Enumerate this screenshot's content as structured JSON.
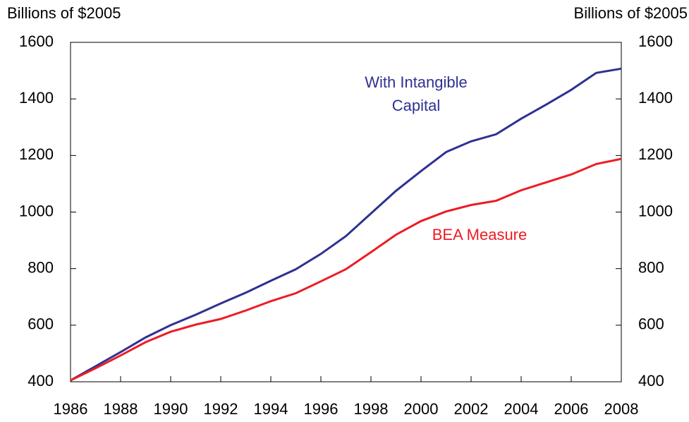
{
  "chart_data": {
    "type": "line",
    "ylabel": "Billions of $2005",
    "y2label": "Billions of $2005",
    "x": [
      1986,
      1987,
      1988,
      1989,
      1990,
      1991,
      1992,
      1993,
      1994,
      1995,
      1996,
      1997,
      1998,
      1999,
      2000,
      2001,
      2002,
      2003,
      2004,
      2005,
      2006,
      2007,
      2008
    ],
    "xlim": [
      1986,
      2008
    ],
    "xticks": [
      1986,
      1988,
      1990,
      1992,
      1994,
      1996,
      1998,
      2000,
      2002,
      2004,
      2006,
      2008
    ],
    "ylim": [
      400,
      1600
    ],
    "yticks": [
      400,
      600,
      800,
      1000,
      1200,
      1400,
      1600
    ],
    "y2lim": [
      400,
      1600
    ],
    "y2ticks": [
      400,
      600,
      800,
      1000,
      1200,
      1400,
      1600
    ],
    "series": [
      {
        "name": "With Intangible Capital",
        "color": "#2e3192",
        "values": [
          405,
          455,
          505,
          557,
          600,
          637,
          677,
          715,
          757,
          798,
          852,
          915,
          995,
          1075,
          1145,
          1212,
          1250,
          1275,
          1330,
          1380,
          1432,
          1492,
          1507
        ]
      },
      {
        "name": "BEA Measure",
        "color": "#ed1c24",
        "values": [
          405,
          448,
          493,
          540,
          577,
          602,
          622,
          652,
          685,
          713,
          755,
          798,
          858,
          920,
          968,
          1002,
          1025,
          1040,
          1077,
          1105,
          1133,
          1170,
          1188
        ]
      }
    ]
  }
}
